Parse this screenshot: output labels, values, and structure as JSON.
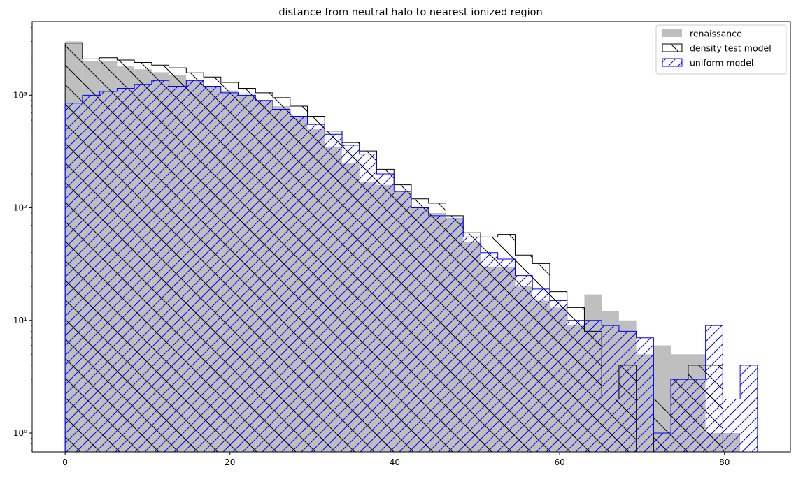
{
  "chart_data": {
    "type": "histogram",
    "title": "distance from neutral halo to nearest ionized region",
    "xlabel": "",
    "ylabel": "",
    "xlim": [
      -4,
      88
    ],
    "ylim": [
      0.68,
      4500
    ],
    "yscale": "log",
    "grid": false,
    "legend_placement": "top-right",
    "bin_width": 2.1,
    "x_ticks": [
      0,
      20,
      40,
      60,
      80
    ],
    "x_tick_labels": [
      "0",
      "20",
      "40",
      "60",
      "80"
    ],
    "y_ticks": [
      1,
      10,
      100,
      1000
    ],
    "y_tick_labels": [
      "10⁰",
      "10¹",
      "10²",
      "10³"
    ],
    "series": [
      {
        "name": "renaissance",
        "style": "filled",
        "color": "#bfbfbf",
        "bin_edges": [
          0,
          2.1,
          4.2,
          6.3,
          8.4,
          10.5,
          12.6,
          14.7,
          16.8,
          18.9,
          21.0,
          23.1,
          25.2,
          27.3,
          29.4,
          31.5,
          33.6,
          35.7,
          37.8,
          39.9,
          42.0,
          44.1,
          46.2,
          48.3,
          50.4,
          52.5,
          54.6,
          56.7,
          58.8,
          60.9,
          63.0,
          65.1,
          67.2,
          69.3,
          71.4,
          73.5,
          75.6,
          77.7,
          79.8
        ],
        "values": [
          3000,
          2000,
          2000,
          1800,
          1700,
          1600,
          1500,
          1350,
          1200,
          1100,
          1000,
          900,
          800,
          650,
          500,
          350,
          250,
          170,
          160,
          140,
          100,
          90,
          80,
          50,
          30,
          30,
          20,
          15,
          13,
          9,
          17,
          12,
          10,
          5,
          6,
          5,
          5,
          1,
          1
        ]
      },
      {
        "name": "density test model",
        "style": "hatched-backslash",
        "color": "#000000",
        "bin_edges": [
          0,
          2.1,
          4.2,
          6.3,
          8.4,
          10.5,
          12.6,
          14.7,
          16.8,
          18.9,
          21.0,
          23.1,
          25.2,
          27.3,
          29.4,
          31.5,
          33.6,
          35.7,
          37.8,
          39.9,
          42.0,
          44.1,
          46.2,
          48.3,
          50.4,
          52.5,
          54.6,
          56.7,
          58.8,
          60.9,
          63.0,
          65.1,
          67.2,
          69.3,
          71.4,
          73.5,
          75.6,
          77.7,
          79.8
        ],
        "values": [
          2900,
          2100,
          2150,
          2050,
          1950,
          1850,
          1750,
          1580,
          1450,
          1300,
          1150,
          1050,
          950,
          800,
          650,
          480,
          380,
          320,
          220,
          160,
          120,
          110,
          85,
          60,
          55,
          58,
          38,
          32,
          18,
          13,
          8,
          2,
          4,
          0,
          2,
          3,
          4,
          4,
          0
        ]
      },
      {
        "name": "uniform model",
        "style": "hatched-slash",
        "color": "#0000ff",
        "bin_edges": [
          0,
          2.1,
          4.2,
          6.3,
          8.4,
          10.5,
          12.6,
          14.7,
          16.8,
          18.9,
          21.0,
          23.1,
          25.2,
          27.3,
          29.4,
          31.5,
          33.6,
          35.7,
          37.8,
          39.9,
          42.0,
          44.1,
          46.2,
          48.3,
          50.4,
          52.5,
          54.6,
          56.7,
          58.8,
          60.9,
          63.0,
          65.1,
          67.2,
          69.3,
          71.4,
          73.5,
          75.6,
          77.7,
          79.8,
          81.9
        ],
        "values": [
          850,
          1000,
          1080,
          1150,
          1250,
          1350,
          1200,
          1350,
          1200,
          1050,
          1000,
          900,
          750,
          650,
          550,
          450,
          360,
          300,
          200,
          140,
          100,
          85,
          80,
          55,
          40,
          35,
          25,
          19,
          15,
          10,
          10,
          9,
          8,
          7,
          1,
          3,
          3,
          9,
          2,
          4
        ]
      }
    ]
  }
}
